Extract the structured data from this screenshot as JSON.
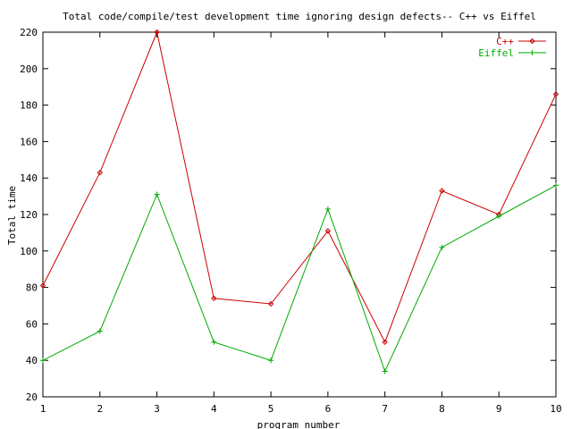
{
  "chart_data": {
    "type": "line",
    "title": "Total code/compile/test development time ignoring design defects-- C++ vs Eiffel",
    "xlabel": "program number",
    "ylabel": "Total time",
    "xlim": [
      1,
      10
    ],
    "ylim": [
      20,
      220
    ],
    "x_ticks": [
      1,
      2,
      3,
      4,
      5,
      6,
      7,
      8,
      9,
      10
    ],
    "y_ticks": [
      20,
      40,
      60,
      80,
      100,
      120,
      140,
      160,
      180,
      200,
      220
    ],
    "grid": false,
    "legend_position": "top-right",
    "x": [
      1,
      2,
      3,
      4,
      5,
      6,
      7,
      8,
      9,
      10
    ],
    "series": [
      {
        "name": "C++",
        "color": "#cc0000",
        "marker": "diamond",
        "values": [
          81,
          143,
          220,
          74,
          71,
          111,
          50,
          133,
          120,
          186
        ]
      },
      {
        "name": "Eiffel",
        "color": "#00aa00",
        "marker": "plus",
        "values": [
          40,
          56,
          131,
          50,
          40,
          123,
          34,
          102,
          119,
          136
        ]
      }
    ]
  }
}
